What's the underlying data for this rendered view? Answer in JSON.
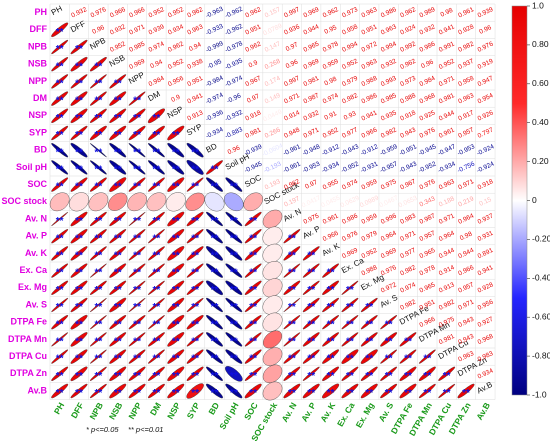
{
  "chart_data": {
    "type": "correlation",
    "variables": [
      "PH",
      "DFF",
      "NPB",
      "NSB",
      "NPP",
      "DM",
      "NSP",
      "SYP",
      "BD",
      "Soil pH",
      "SOC",
      "SOC stock",
      "Av. N",
      "Av. P",
      "Av. K",
      "Ex. Ca",
      "Ex. Mg",
      "Av. S",
      "DTPA Fe",
      "DTPA Mn",
      "DTPA Cu",
      "DTPA Zn",
      "Av.B"
    ],
    "matrix": [
      [
        0.932,
        0.976,
        0.966,
        0.966,
        0.952,
        0.952,
        0.962,
        -0.963,
        -0.962,
        0.962,
        0.157,
        0.997,
        0.969,
        0.962,
        0.973,
        0.963,
        0.986,
        0.962,
        0.989,
        0.98,
        0.961,
        0.939
      ],
      [
        0.96,
        0.932,
        0.971,
        0.939,
        0.934,
        0.963,
        -0.933,
        -0.962,
        0.951,
        0.0789,
        0.936,
        0.944,
        0.95,
        0.958,
        0.951,
        0.963,
        0.924,
        0.932,
        0.941,
        0.928,
        0.96
      ],
      [
        0.952,
        0.985,
        0.974,
        0.962,
        0.94,
        -0.999,
        -0.978,
        0.962,
        0.147,
        0.97,
        0.965,
        0.978,
        0.994,
        0.972,
        0.994,
        0.992,
        0.986,
        0.991,
        0.982,
        0.976
      ],
      [
        0.969,
        0.94,
        0.952,
        0.938,
        -0.95,
        -0.935,
        0.9,
        0.268,
        0.96,
        0.969,
        0.959,
        0.952,
        0.963,
        0.932,
        0.962,
        0.96,
        0.952,
        0.937,
        0.919
      ],
      [
        0.984,
        0.956,
        0.951,
        -0.984,
        -0.974,
        0.967,
        0.174,
        0.997,
        0.981,
        0.98,
        0.979,
        0.988,
        0.993,
        0.973,
        0.984,
        0.971,
        0.958,
        0.947
      ],
      [
        0.9,
        0.941,
        -0.974,
        -0.96,
        0.97,
        0.149,
        0.971,
        0.987,
        0.974,
        0.982,
        0.986,
        0.985,
        0.988,
        0.968,
        0.981,
        0.963,
        0.954
      ],
      [
        0.913,
        -0.936,
        -0.932,
        0.918,
        0.0449,
        0.914,
        0.932,
        0.91,
        0.93,
        0.941,
        0.935,
        0.918,
        0.925,
        0.944,
        0.917,
        0.926
      ],
      [
        -0.934,
        -0.883,
        0.981,
        0.266,
        0.948,
        0.971,
        0.952,
        0.977,
        0.966,
        0.982,
        0.943,
        0.976,
        0.961,
        0.957,
        0.797
      ],
      [
        0.96,
        -0.939,
        -0.0604,
        -0.961,
        -0.948,
        -0.912,
        -0.943,
        -0.912,
        -0.959,
        -0.951,
        -0.945,
        -0.947,
        -0.953,
        -0.924
      ],
      [
        -0.945,
        -0.193,
        -0.961,
        -0.953,
        -0.934,
        -0.952,
        -0.931,
        -0.957,
        -0.943,
        -0.952,
        -0.934,
        -0.756,
        -0.924
      ],
      [
        0.193,
        0.962,
        0.97,
        0.955,
        0.974,
        0.959,
        0.975,
        0.967,
        0.976,
        0.963,
        0.971,
        0.918
      ],
      [
        0.197,
        0.0417,
        0.0455,
        0.0629,
        0.0989,
        0.0467,
        0.0653,
        0.343,
        0.188,
        0.219,
        0.15
      ],
      [
        0.975,
        0.961,
        0.986,
        0.959,
        0.996,
        0.983,
        0.987,
        0.971,
        0.964,
        0.937
      ],
      [
        0.966,
        0.976,
        0.979,
        0.964,
        0.971,
        0.957,
        0.964,
        0.98,
        0.931
      ],
      [
        0.969,
        0.952,
        0.969,
        0.977,
        0.965,
        0.944,
        0.944,
        0.891
      ],
      [
        0.988,
        0.976,
        0.982,
        0.978,
        0.914,
        0.966,
        0.941
      ],
      [
        0.972,
        0.974,
        0.965,
        0.913,
        0.957,
        0.928
      ],
      [
        0.982,
        0.951,
        0.982,
        0.971,
        0.956
      ],
      [
        0.966,
        0.975,
        0.943,
        0.927
      ],
      [
        0.981,
        0.943,
        0.968
      ],
      [
        0.963,
        0.983
      ],
      [
        0.934
      ]
    ],
    "significance": [
      [
        "**",
        "**",
        "**",
        "**",
        "**",
        "**",
        "**",
        "**",
        "**",
        "**",
        null,
        "**",
        "**",
        "**",
        "**",
        "**",
        "**",
        "**",
        "**",
        "**",
        "**",
        "**"
      ],
      [
        "**",
        "**",
        "**",
        "**",
        "**",
        "**",
        "**",
        "**",
        "**",
        null,
        "**",
        "**",
        "**",
        "**",
        "**",
        "**",
        "**",
        "**",
        "**",
        "**",
        "**"
      ],
      [
        "**",
        "**",
        "**",
        "**",
        "**",
        "**",
        "**",
        "**",
        null,
        "**",
        "**",
        "**",
        "**",
        "**",
        "**",
        "**",
        "**",
        "**",
        "**",
        "**"
      ],
      [
        "**",
        "**",
        "**",
        "**",
        "**",
        "**",
        "**",
        null,
        "**",
        "**",
        "**",
        "**",
        "**",
        "**",
        "**",
        "**",
        "**",
        "**",
        "**"
      ],
      [
        "**",
        "**",
        "**",
        "**",
        "**",
        "**",
        null,
        "**",
        "**",
        "**",
        "**",
        "**",
        "**",
        "**",
        "**",
        "**",
        "**",
        "**"
      ],
      [
        "**",
        "**",
        "**",
        "**",
        "**",
        null,
        "**",
        "**",
        "**",
        "**",
        "**",
        "**",
        "**",
        "**",
        "**",
        "**",
        "**"
      ],
      [
        "**",
        "**",
        "**",
        "**",
        null,
        "**",
        "**",
        "**",
        "**",
        "**",
        "**",
        "**",
        "**",
        "**",
        "**",
        "**"
      ],
      [
        "**",
        "**",
        "**",
        null,
        "**",
        "**",
        "**",
        "**",
        "**",
        "**",
        "**",
        "**",
        "**",
        "**",
        "**"
      ],
      [
        "**",
        "**",
        null,
        "**",
        "**",
        "**",
        "**",
        "**",
        "**",
        "**",
        "**",
        "**",
        "**",
        "**"
      ],
      [
        "**",
        null,
        "**",
        "**",
        "**",
        "**",
        "**",
        "**",
        "**",
        "**",
        "**",
        "**",
        "**"
      ],
      [
        null,
        "**",
        "**",
        "**",
        "**",
        "**",
        "**",
        "**",
        "**",
        "**",
        "**",
        "**"
      ],
      [
        null,
        null,
        null,
        null,
        null,
        null,
        null,
        null,
        null,
        null,
        null
      ],
      [
        "**",
        "**",
        "**",
        "**",
        "**",
        "**",
        "**",
        "**",
        "**",
        "**"
      ],
      [
        "**",
        "**",
        "**",
        "**",
        "**",
        "**",
        "**",
        "**",
        "**"
      ],
      [
        "**",
        "**",
        "**",
        "**",
        "**",
        "**",
        "**",
        "**"
      ],
      [
        "**",
        "**",
        "**",
        "**",
        "**",
        "**",
        "**"
      ],
      [
        "**",
        "**",
        "**",
        "**",
        "**",
        "**"
      ],
      [
        "**",
        "**",
        "**",
        "**",
        "**"
      ],
      [
        "**",
        "**",
        "**",
        "**"
      ],
      [
        "**",
        "**",
        "**"
      ],
      [
        "**",
        "**"
      ],
      [
        "**"
      ]
    ],
    "clim": [
      -1,
      1
    ],
    "colors": [
      "#000080",
      "#2525ff",
      "#ffffff",
      "#ff2a2a",
      "#e60000"
    ],
    "cticks": [
      {
        "value": 1,
        "label": "1.0"
      },
      {
        "value": 0.8,
        "label": "0.80"
      },
      {
        "value": 0.6,
        "label": "0.60"
      },
      {
        "value": 0.4,
        "label": "0.40"
      },
      {
        "value": 0.2,
        "label": "0.20"
      },
      0,
      {
        "value": -0.2,
        "label": "-0.20"
      },
      {
        "value": -0.4,
        "label": "-0.40"
      },
      {
        "value": -0.6,
        "label": "-0.60"
      },
      {
        "value": -0.8,
        "label": "-0.80"
      },
      {
        "value": -1,
        "label": "-1.0"
      }
    ],
    "row_label_color": "#e000e0",
    "col_label_color": "#1a9a1a",
    "star_color": "#1010e0",
    "notes": [
      "* p<=0.05",
      "** p<=0.01"
    ]
  }
}
